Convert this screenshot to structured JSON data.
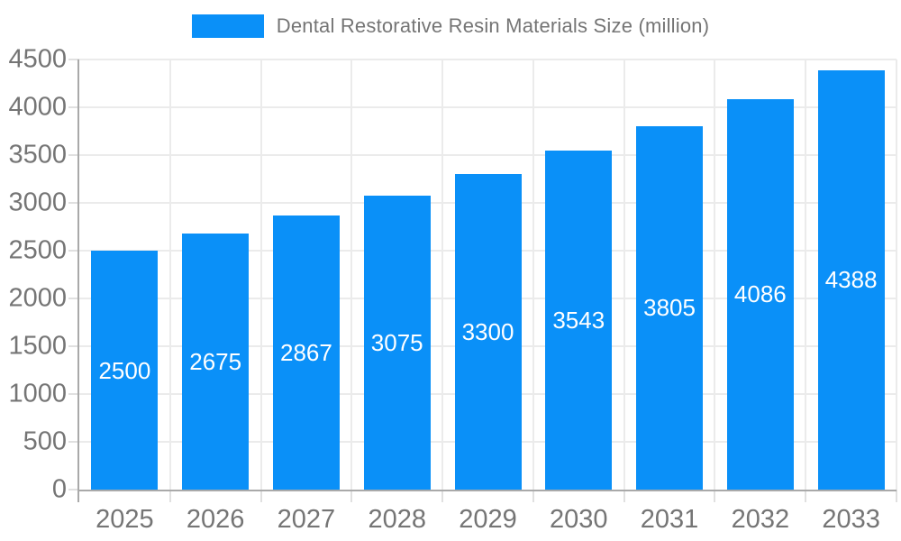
{
  "chart_data": {
    "type": "bar",
    "title": "Dental Restorative Resin Materials Size (million)",
    "legend_position": "top",
    "categories": [
      "2025",
      "2026",
      "2027",
      "2028",
      "2029",
      "2030",
      "2031",
      "2032",
      "2033"
    ],
    "values": [
      2500,
      2675,
      2867,
      3075,
      3300,
      3543,
      3805,
      4086,
      4388
    ],
    "series_name": "Dental Restorative Resin Materials Size (million)",
    "xlabel": "",
    "ylabel": "",
    "ylim": [
      0,
      4500
    ],
    "ytick_step": 500,
    "yticks": [
      0,
      500,
      1000,
      1500,
      2000,
      2500,
      3000,
      3500,
      4000,
      4500
    ],
    "grid": true,
    "bar_value_labels_shown": true,
    "colors": {
      "bar": "#0a90f8",
      "bar_label_text": "#ffffff",
      "axis_text": "#757575",
      "grid_line": "#ebebeb",
      "tick_line": "#e0e0e0",
      "axis_line": "#a9a9a9",
      "background": "#ffffff"
    }
  }
}
